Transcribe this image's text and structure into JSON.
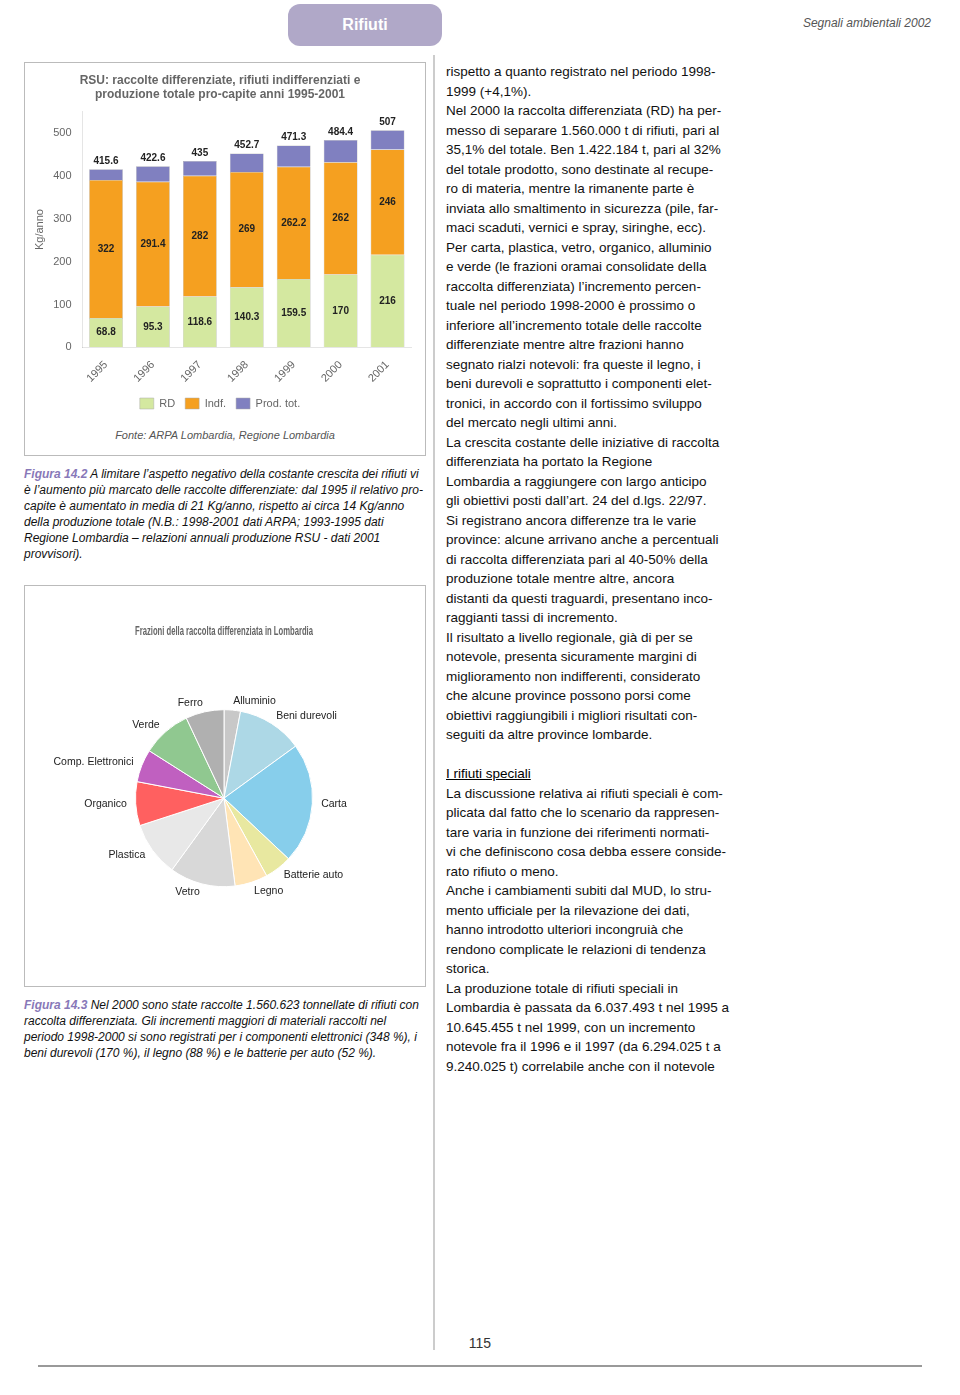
{
  "chart_data": [
    {
      "type": "bar",
      "title": [
        "RSU: raccolte differenziate, rifiuti indifferenziati e",
        "produzione totale pro-capite anni 1995-2001"
      ],
      "categories": [
        "1995",
        "1996",
        "1997",
        "1998",
        "1999",
        "2000",
        "2001"
      ],
      "series": [
        {
          "name": "RD",
          "color": "#d4e8a0",
          "values": [
            68.8,
            95.3,
            118.6,
            140.3,
            159.5,
            170,
            216
          ],
          "data_labels": true
        },
        {
          "name": "Indf.",
          "color": "#f5a020",
          "values": [
            322,
            291.4,
            282,
            269,
            262.2,
            262,
            246
          ],
          "data_labels": true
        },
        {
          "name": "Prod. tot.",
          "color": "#8080c0",
          "values": [
            24.8,
            35.9,
            34.4,
            43.4,
            49.6,
            52.4,
            45
          ],
          "data_labels": false
        }
      ],
      "totals": [
        415.6,
        422.6,
        435,
        452.7,
        471.3,
        484.4,
        507
      ],
      "stacked": true,
      "ylabel": "Kg/anno",
      "ylim": [
        0,
        550
      ],
      "yticks": [
        0,
        100,
        200,
        300,
        400,
        500
      ],
      "grid": false,
      "legend": "bottom",
      "annotations": [
        "Rifiuti",
        "Segnali ambientali 2002",
        "Fonte: ARPA Lombardia, Regione Lombardia",
        "Figura 14.2",
        " A limitare l’aspetto negativo della costante crescita dei rifiuti vi è l’aumento più marcato delle raccolte differenziate: dal 1995 il relativo pro-capite è aumentato in media di 21 Kg/anno, rispetto ai circa 14 Kg/anno della produzione totale (N.B.: 1998-2001 dati ARPA; 1993-1995 dati Regione Lombardia – relazioni annuali produzione RSU - dati 2001 provvisori)."
      ]
    },
    {
      "type": "pie",
      "title": "Frazioni della raccolta differenziata in Lombardia",
      "categories": [
        "Alluminio",
        "Beni durevoli",
        "Carta",
        "Batterie auto",
        "Legno",
        "Vetro",
        "Plastica",
        "Organico",
        "Comp. Elettronici",
        "Verde",
        "Ferro"
      ],
      "values": [
        3,
        12,
        22,
        5,
        6,
        12,
        10,
        8,
        6,
        9,
        7
      ],
      "colors": [
        "#c8c8c8",
        "#add8e6",
        "#87ceeb",
        "#e8e8a0",
        "#ffe4b5",
        "#d8d8d8",
        "#e8e8e8",
        "#ff6060",
        "#c060c0",
        "#90c890",
        "#b0b0b0"
      ],
      "annotations": [
        "Figura 14.3",
        " Nel 2000 sono state raccolte 1.560.623 tonnellate di rifiuti con raccolta differenziata. Gli incrementi maggiori di materiali raccolti nel periodo 1998-2000 si sono registrati per i componenti elettronici (348 %), i beni durevoli (170 %), il legno (88 %) e le batterie per auto (52 %).",
        "115",
        "rispetto a quanto registrato nel periodo 1998-\n1999 (+4,1%).\nNel 2000 la raccolta differenziata (RD) ha per-\nmesso di separare 1.560.000 t di rifiuti, pari al\n35,1% del totale. Ben 1.422.184 t, pari al 32%\ndel totale prodotto, sono destinate al recupe-\nro di materia, mentre la rimanente parte è\ninviata allo smaltimento in sicurezza (pile, far-\nmaci scaduti, vernici e spray, siringhe, ecc).\nPer carta, plastica, vetro, organico, alluminio\ne verde (le frazioni oramai consolidate della\nraccolta differenziata) l’incremento percen-\ntuale nel periodo 1998-2000 è prossimo o\ninferiore all’incremento totale delle raccolte\ndifferenziate mentre altre frazioni hanno\nsegnato rialzi notevoli: fra queste il legno, i\nbeni durevoli e soprattutto i componenti elet-\ntronici, in accordo con il fortissimo sviluppo\ndel mercato negli ultimi anni.\nLa crescita costante delle iniziative di raccolta\ndifferenziata ha portato la Regione\nLombardia a raggiungere con largo anticipo\ngli obiettivi posti dall’art. 24 del d.lgs. 22/97.\nSi registrano ancora differenze tra le varie\nprovince: alcune arrivano anche a percentuali\ndi raccolta differenziata pari al 40-50% della\nproduzione totale mentre altre, ancora\ndistanti da questi traguardi, presentano inco-\nraggianti tassi di incremento.\nIl risultato a livello regionale, già di per se\nnotevole, presenta sicuramente margini di\nmiglioramento non indifferenti, considerato\nche alcune province possono porsi come\nobiettivi raggiungibili i migliori risultati con-\nseguiti da altre province lombarde.",
        "I rifiuti speciali",
        "La discussione relativa ai rifiuti speciali è com-\nplicata dal fatto che lo scenario da rappresen-\ntare varia in funzione dei riferimenti normati-\nvi che definiscono cosa debba essere conside-\nrato rifiuto o meno.\nAnche i cambiamenti subiti dal MUD, lo stru-\nmento ufficiale per la rilevazione dei dati,\nhanno introdotto ulteriori incongruià che\nrendono complicate le relazioni di tendenza\nstorica.\nLa produzione totale di rifiuti speciali in\nLombardia è passata da 6.037.493 t nel 1995 a\n10.645.455 t nel 1999, con un incremento\nnotevole fra il 1996 e il 1997 (da 6.294.025 t a\n9.240.025 t) correlabile anche con il notevole"
      ]
    }
  ]
}
